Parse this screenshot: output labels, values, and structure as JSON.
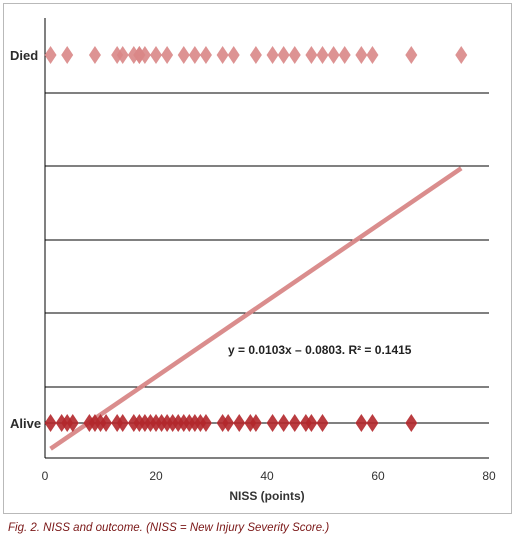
{
  "chart_data": {
    "type": "scatter",
    "xlabel": "NISS (points)",
    "xlim": [
      0,
      80
    ],
    "xticks": [
      0,
      20,
      40,
      60,
      80
    ],
    "categories": [
      "Alive",
      "Died"
    ],
    "series": [
      {
        "category": "Died",
        "y": 1,
        "color": "#d98787",
        "x": [
          1,
          4,
          9,
          13,
          14,
          16,
          17,
          17,
          18,
          20,
          22,
          25,
          27,
          29,
          32,
          34,
          38,
          41,
          43,
          45,
          48,
          50,
          52,
          54,
          57,
          59,
          66,
          75
        ]
      },
      {
        "category": "Alive",
        "y": 0,
        "color": "#b3272b",
        "x": [
          1,
          3,
          4,
          5,
          8,
          9,
          10,
          11,
          13,
          14,
          16,
          17,
          18,
          19,
          20,
          21,
          22,
          23,
          24,
          25,
          26,
          27,
          28,
          29,
          32,
          33,
          35,
          37,
          38,
          41,
          43,
          45,
          47,
          48,
          50,
          57,
          59,
          66
        ]
      }
    ],
    "trendline": {
      "color": "#d98787",
      "slope": 0.0103,
      "intercept": -0.0803,
      "x_range": [
        1,
        75
      ],
      "equation_text": "y = 0.0103x – 0.0803. R² = 0.1415"
    }
  },
  "caption": "Fig. 2. NISS and outcome. (NISS = New Injury Severity Score.)"
}
